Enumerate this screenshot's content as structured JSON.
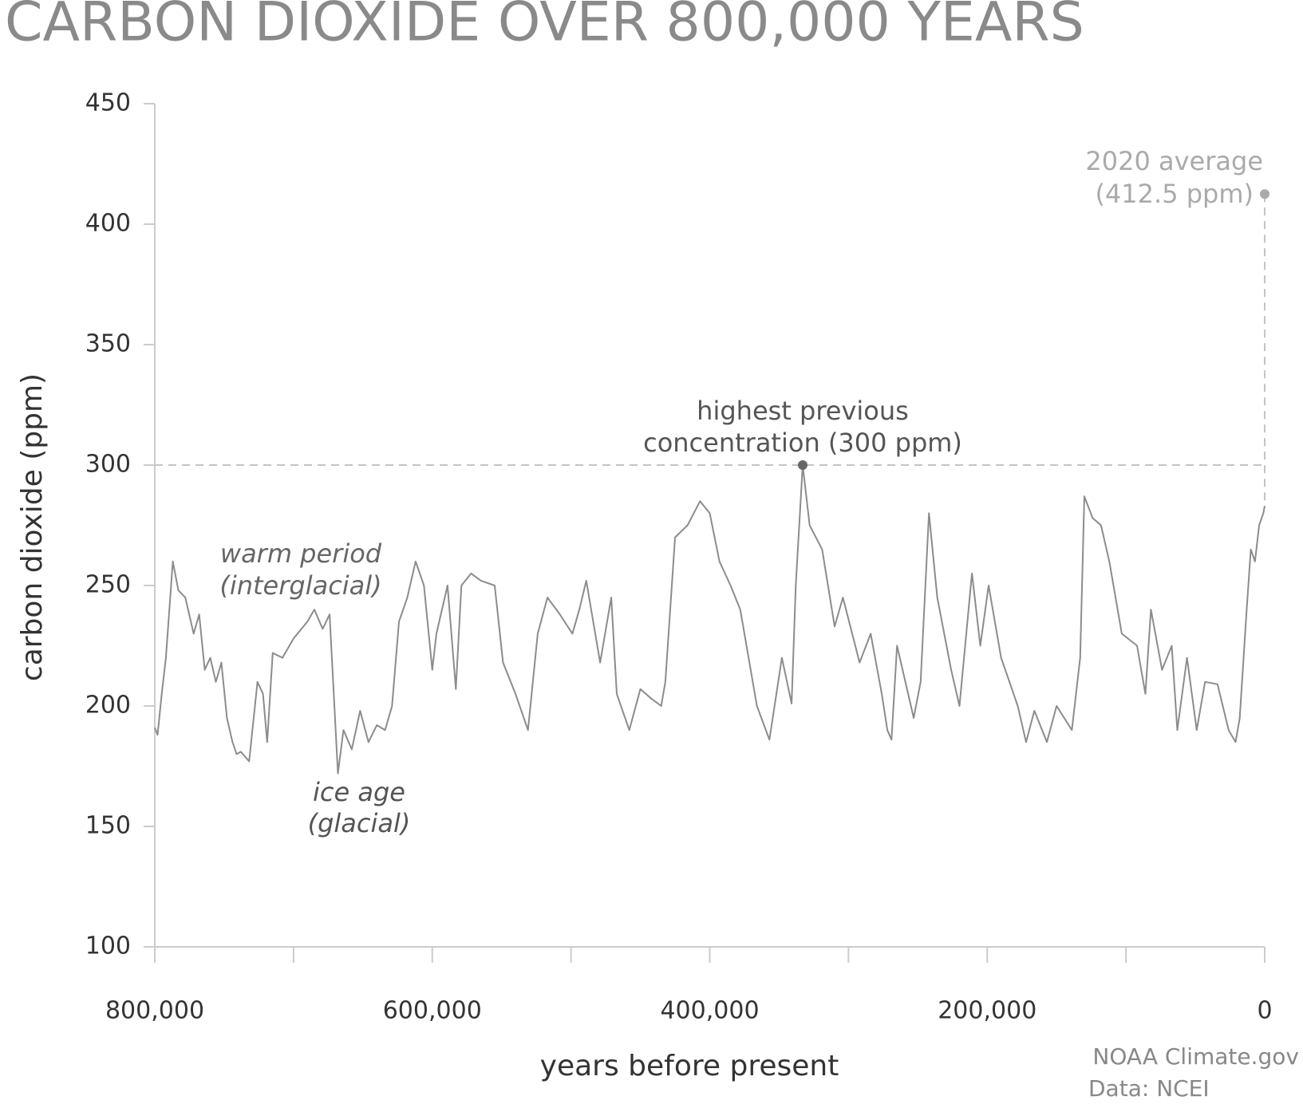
{
  "chart_data": {
    "type": "line",
    "title": "CARBON DIOXIDE OVER 800,000 YEARS",
    "xlabel": "years before present",
    "ylabel": "carbon dioxide (ppm)",
    "credits": [
      "NOAA Climate.gov",
      "Data: NCEI"
    ],
    "xlim": [
      800000,
      0
    ],
    "ylim": [
      100,
      450
    ],
    "xticks": [
      {
        "value": 800000,
        "label": "800,000"
      },
      {
        "value": 600000,
        "label": "600,000"
      },
      {
        "value": 400000,
        "label": "400,000"
      },
      {
        "value": 200000,
        "label": "200,000"
      },
      0
    ],
    "xminor_ticks": [
      700000,
      500000,
      300000,
      100000
    ],
    "yticks": [
      100,
      150,
      200,
      250,
      300,
      350,
      400,
      450
    ],
    "x": [
      800000,
      798000,
      795000,
      792000,
      787000,
      783000,
      778000,
      772000,
      768000,
      764000,
      760000,
      756000,
      752000,
      748000,
      744000,
      741000,
      738000,
      732000,
      726000,
      722000,
      719000,
      715000,
      708000,
      700000,
      690000,
      685000,
      679000,
      674000,
      668000,
      664000,
      658000,
      652000,
      646000,
      640000,
      634000,
      629000,
      624000,
      618000,
      612000,
      606000,
      600000,
      597000,
      589000,
      583000,
      579000,
      572000,
      565000,
      555000,
      549000,
      540000,
      531000,
      524000,
      517000,
      508000,
      499000,
      494000,
      489000,
      479000,
      471000,
      467000,
      458000,
      450000,
      442000,
      435000,
      432000,
      425000,
      416000,
      407000,
      400000,
      393000,
      385000,
      378000,
      366000,
      357000,
      348000,
      341000,
      338000,
      333000,
      328000,
      319000,
      310000,
      304000,
      292000,
      284000,
      276000,
      272000,
      269000,
      265000,
      253000,
      248000,
      242000,
      236000,
      226000,
      220000,
      211000,
      205000,
      199000,
      190000,
      178000,
      172000,
      166000,
      157000,
      150000,
      139000,
      133000,
      130000,
      124000,
      118000,
      112000,
      103000,
      92000,
      86000,
      82000,
      74000,
      67000,
      63000,
      56000,
      49000,
      43000,
      34000,
      26000,
      21000,
      18000,
      13000,
      10000,
      7000,
      4000,
      1000,
      0
    ],
    "series": [
      {
        "name": "carbon dioxide",
        "color": "#8c8c8c",
        "values": [
          191,
          188,
          205,
          220,
          260,
          248,
          245,
          230,
          238,
          215,
          220,
          210,
          218,
          195,
          185,
          180,
          181,
          177,
          210,
          205,
          185,
          222,
          220,
          228,
          235,
          240,
          232,
          238,
          172,
          190,
          182,
          198,
          185,
          192,
          190,
          200,
          235,
          245,
          260,
          250,
          215,
          230,
          250,
          207,
          250,
          255,
          252,
          250,
          218,
          205,
          190,
          230,
          245,
          238,
          230,
          240,
          252,
          218,
          245,
          205,
          190,
          207,
          203,
          200,
          210,
          270,
          275,
          285,
          280,
          260,
          250,
          240,
          200,
          186,
          220,
          201,
          250,
          300,
          275,
          265,
          233,
          245,
          218,
          230,
          205,
          190,
          186,
          225,
          195,
          210,
          280,
          245,
          215,
          200,
          255,
          225,
          250,
          220,
          200,
          185,
          198,
          185,
          200,
          190,
          220,
          287,
          278,
          275,
          260,
          230,
          225,
          205,
          240,
          215,
          225,
          190,
          220,
          190,
          210,
          209,
          190,
          185,
          195,
          240,
          265,
          260,
          275,
          280,
          283
        ]
      }
    ],
    "reference_line": {
      "y": 300
    },
    "annotations": [
      {
        "lines": [
          "warm period",
          "(interglacial)"
        ]
      },
      {
        "lines": [
          "ice age",
          "(glacial)"
        ]
      },
      {
        "lines": [
          "highest previous",
          "concentration (300 ppm)"
        ],
        "x": 333000,
        "y": 300
      },
      {
        "lines": [
          "2020 average",
          "(412.5 ppm)"
        ],
        "x": 0,
        "y": 412.5
      }
    ]
  }
}
